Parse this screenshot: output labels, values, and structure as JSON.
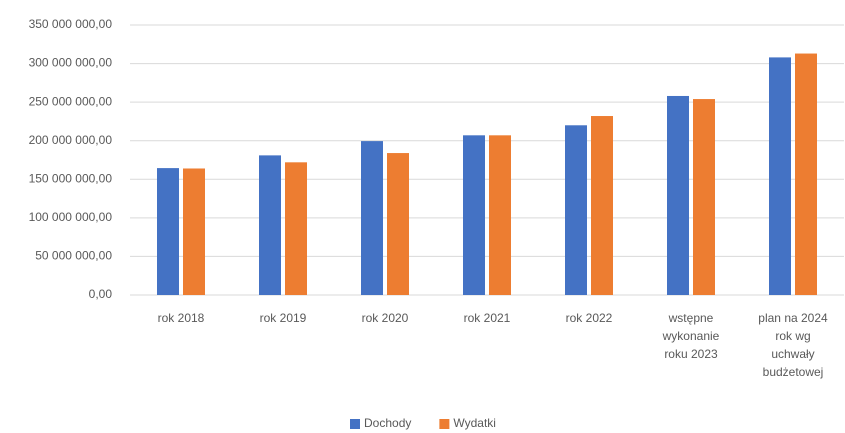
{
  "chart_data": {
    "type": "bar",
    "categories": [
      [
        "rok 2018"
      ],
      [
        "rok 2019"
      ],
      [
        "rok 2020"
      ],
      [
        "rok 2021"
      ],
      [
        "rok 2022"
      ],
      [
        "wstępne",
        "wykonanie",
        "roku 2023"
      ],
      [
        "plan na 2024",
        "rok wg",
        "uchwały",
        "budżetowej"
      ]
    ],
    "series": [
      {
        "name": "Dochody",
        "color": "#4472c4",
        "values": [
          164500000,
          181000000,
          199500000,
          207000000,
          220000000,
          258000000,
          308000000
        ]
      },
      {
        "name": "Wydatki",
        "color": "#ed7d31",
        "values": [
          164000000,
          172000000,
          184000000,
          207000000,
          232000000,
          254000000,
          313000000
        ]
      }
    ],
    "ylim": [
      0,
      350000000
    ],
    "yticks": [
      {
        "value": 0,
        "label": "0,00"
      },
      {
        "value": 50000000,
        "label": "50 000 000,00"
      },
      {
        "value": 100000000,
        "label": "100 000 000,00"
      },
      {
        "value": 150000000,
        "label": "150 000 000,00"
      },
      {
        "value": 200000000,
        "label": "200 000 000,00"
      },
      {
        "value": 250000000,
        "label": "250 000 000,00"
      },
      {
        "value": 300000000,
        "label": "300 000 000,00"
      },
      {
        "value": 350000000,
        "label": "350 000 000,00"
      }
    ],
    "grid": true,
    "legend": "bottom"
  }
}
